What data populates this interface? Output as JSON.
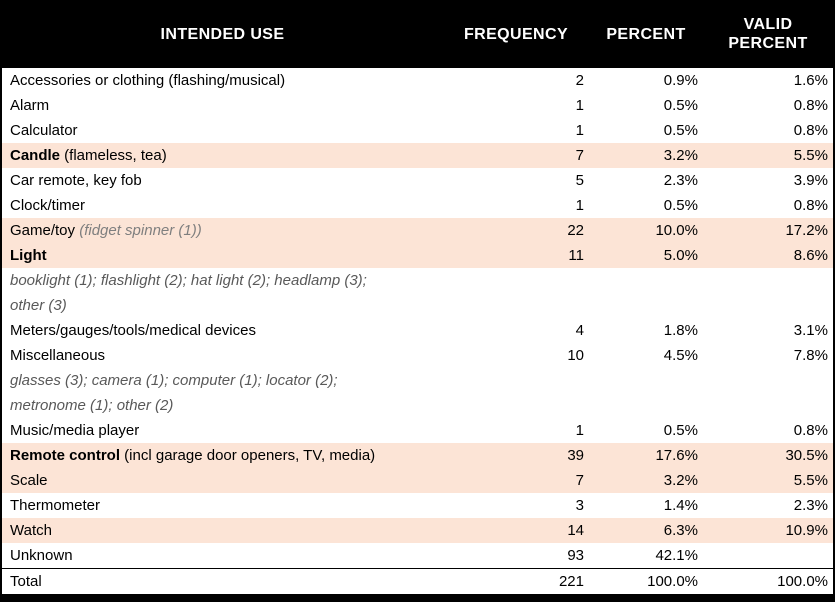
{
  "table": {
    "headers": [
      {
        "label": "INTENDED USE"
      },
      {
        "label": "FREQUENCY"
      },
      {
        "label": "PERCENT"
      },
      {
        "label": "VALID PERCENT"
      }
    ],
    "rows": [
      {
        "type": "item",
        "name": "Accessories or clothing (flashing/musical)",
        "freq": "2",
        "pct": "0.9%",
        "valid": "1.6%",
        "highlight": false
      },
      {
        "type": "item",
        "name": "Alarm",
        "freq": "1",
        "pct": "0.5%",
        "valid": "0.8%",
        "highlight": false
      },
      {
        "type": "item",
        "name": "Calculator",
        "freq": "1",
        "pct": "0.5%",
        "valid": "0.8%",
        "highlight": false
      },
      {
        "type": "item",
        "name": "Candle",
        "name_bold": true,
        "note": " (flameless, tea)",
        "freq": "7",
        "pct": "3.2%",
        "valid": "5.5%",
        "highlight": true
      },
      {
        "type": "item",
        "name": "Car remote, key fob",
        "freq": "5",
        "pct": "2.3%",
        "valid": "3.9%",
        "highlight": false
      },
      {
        "type": "item",
        "name": "Clock/timer",
        "freq": "1",
        "pct": "0.5%",
        "valid": "0.8%",
        "highlight": false
      },
      {
        "type": "item",
        "name": "Game/toy",
        "note_italic": " (fidget spinner (1))",
        "freq": "22",
        "pct": "10.0%",
        "valid": "17.2%",
        "highlight": true
      },
      {
        "type": "item",
        "name": "Light",
        "name_bold": true,
        "freq": "11",
        "pct": "5.0%",
        "valid": "8.6%",
        "highlight": true
      },
      {
        "type": "detail",
        "lines": [
          "booklight (1); flashlight (2); hat light (2); headlamp (3);",
          "other (3)"
        ]
      },
      {
        "type": "item",
        "name": "Meters/gauges/tools/medical devices",
        "freq": "4",
        "pct": "1.8%",
        "valid": "3.1%",
        "highlight": false
      },
      {
        "type": "item",
        "name": "Miscellaneous",
        "freq": "10",
        "pct": "4.5%",
        "valid": "7.8%",
        "highlight": false
      },
      {
        "type": "detail",
        "lines": [
          "glasses (3); camera (1); computer (1); locator (2);",
          "metronome (1); other (2)"
        ]
      },
      {
        "type": "item",
        "name": "Music/media player",
        "freq": "1",
        "pct": "0.5%",
        "valid": "0.8%",
        "highlight": false
      },
      {
        "type": "item",
        "name": "Remote control",
        "name_bold": true,
        "note": " (incl garage door openers, TV, media)",
        "freq": "39",
        "pct": "17.6%",
        "valid": "30.5%",
        "highlight": true
      },
      {
        "type": "item",
        "name": "Scale",
        "freq": "7",
        "pct": "3.2%",
        "valid": "5.5%",
        "highlight": true
      },
      {
        "type": "item",
        "name": "Thermometer",
        "freq": "3",
        "pct": "1.4%",
        "valid": "2.3%",
        "highlight": false
      },
      {
        "type": "item",
        "name": "Watch",
        "freq": "14",
        "pct": "6.3%",
        "valid": "10.9%",
        "highlight": true
      },
      {
        "type": "item",
        "name": "Unknown",
        "freq": "93",
        "pct": "42.1%",
        "valid": "",
        "highlight": false
      },
      {
        "type": "item",
        "name": "Total",
        "freq": "221",
        "pct": "100.0%",
        "valid": "100.0%",
        "highlight": false,
        "total": true
      }
    ],
    "colors": {
      "header_bg": "#000000",
      "header_text": "#ffffff",
      "highlight_row": "#fce4d6",
      "detail_text": "#595959",
      "inline_note_text": "#7f7f7f"
    }
  },
  "chart_data": {
    "type": "table",
    "title": "",
    "columns": [
      "INTENDED USE",
      "FREQUENCY",
      "PERCENT",
      "VALID PERCENT"
    ],
    "rows": [
      [
        "Accessories or clothing (flashing/musical)",
        2,
        "0.9%",
        "1.6%"
      ],
      [
        "Alarm",
        1,
        "0.5%",
        "0.8%"
      ],
      [
        "Calculator",
        1,
        "0.5%",
        "0.8%"
      ],
      [
        "Candle (flameless, tea)",
        7,
        "3.2%",
        "5.5%"
      ],
      [
        "Car remote, key fob",
        5,
        "2.3%",
        "3.9%"
      ],
      [
        "Clock/timer",
        1,
        "0.5%",
        "0.8%"
      ],
      [
        "Game/toy (fidget spinner (1))",
        22,
        "10.0%",
        "17.2%"
      ],
      [
        "Light — booklight (1); flashlight (2); hat light (2); headlamp (3); other (3)",
        11,
        "5.0%",
        "8.6%"
      ],
      [
        "Meters/gauges/tools/medical devices",
        4,
        "1.8%",
        "3.1%"
      ],
      [
        "Miscellaneous — glasses (3); camera (1); computer (1); locator (2); metronome (1); other (2)",
        10,
        "4.5%",
        "7.8%"
      ],
      [
        "Music/media player",
        1,
        "0.5%",
        "0.8%"
      ],
      [
        "Remote control (incl garage door openers, TV, media)",
        39,
        "17.6%",
        "30.5%"
      ],
      [
        "Scale",
        7,
        "3.2%",
        "5.5%"
      ],
      [
        "Thermometer",
        3,
        "1.4%",
        "2.3%"
      ],
      [
        "Watch",
        14,
        "6.3%",
        "10.9%"
      ],
      [
        "Unknown",
        93,
        "42.1%",
        ""
      ],
      [
        "Total",
        221,
        "100.0%",
        "100.0%"
      ]
    ],
    "layout": {
      "highlighted_rows": [
        "Candle",
        "Game/toy",
        "Light",
        "Remote control",
        "Scale",
        "Watch"
      ],
      "grid": "off",
      "numeric_alignment": "right"
    }
  }
}
